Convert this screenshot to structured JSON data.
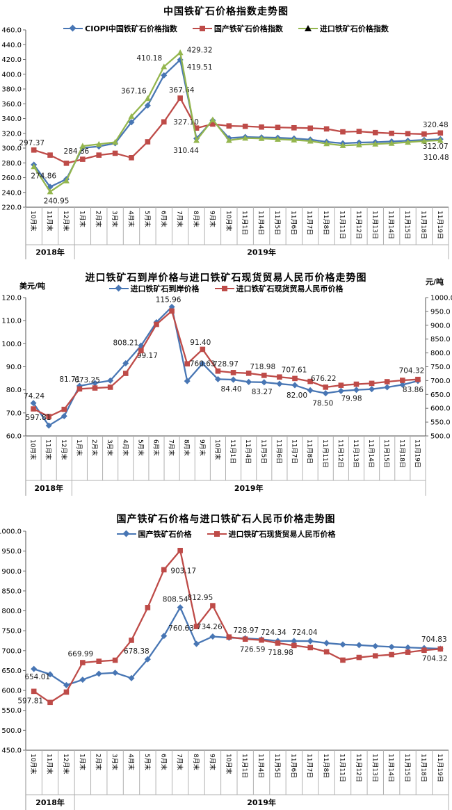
{
  "colors": {
    "blue": "#4876B4",
    "red": "#BE4B48",
    "green": "#94B64E",
    "axis_line": "#6e6e6e",
    "cell_border": "#b0b0b0",
    "data_label": "#1b1b1b"
  },
  "x_axis": {
    "categories": [
      "10月末",
      "11月末",
      "12月末",
      "1月末",
      "2月末",
      "3月末",
      "4月末",
      "5月末",
      "6月末",
      "7月末",
      "8月末",
      "9月末",
      "10月末",
      "11月1日",
      "11月4日",
      "11月5日",
      "11月6日",
      "11月7日",
      "11月8日",
      "11月11日",
      "11月12日",
      "11月13日",
      "11月14日",
      "11月15日",
      "11月18日",
      "11月19日"
    ],
    "year_groups": [
      {
        "label": "2018年",
        "span": 3
      },
      {
        "label": "2019年",
        "span": 23
      }
    ]
  },
  "chart_data": [
    {
      "id": "c1",
      "type": "line",
      "title": "中国铁矿石价格指数走势图",
      "y_axis": {
        "min": 220,
        "max": 460,
        "step": 20
      },
      "legend_position": "top",
      "grid": false,
      "series": [
        {
          "name": "CIOPI中国铁矿石价格指数",
          "color": "blue",
          "marker": "diamond",
          "axis": "y1",
          "values": [
            277.5,
            247.5,
            258.0,
            300.3,
            302.2,
            306.6,
            335.0,
            357.7,
            398.5,
            419.51,
            313.0,
            337.5,
            313.5,
            315.0,
            314.5,
            314.0,
            313.0,
            311.5,
            308.5,
            306.5,
            307.5,
            308.0,
            309.0,
            310.0,
            311.0,
            312.07
          ],
          "point_labels": [
            {
              "i": 9,
              "text": "419.51",
              "dx": 28,
              "dy": 14
            },
            {
              "i": 25,
              "text": "312.07",
              "dx": -7,
              "dy": 14
            }
          ]
        },
        {
          "name": "国产铁矿石价格指数",
          "color": "red",
          "marker": "square",
          "axis": "y1",
          "values": [
            297.37,
            290.5,
            279.5,
            284.86,
            290.5,
            293.0,
            287.0,
            308.5,
            335.5,
            367.64,
            327.1,
            332.5,
            330.0,
            329.5,
            328.5,
            328.0,
            327.5,
            327.0,
            326.0,
            322.0,
            322.5,
            321.0,
            320.0,
            319.5,
            319.0,
            320.48
          ],
          "point_labels": [
            {
              "i": 0,
              "text": "297.37",
              "dx": -3,
              "dy": -7
            },
            {
              "i": 3,
              "text": "284.86",
              "dx": -9,
              "dy": -8
            },
            {
              "i": 9,
              "text": "367.64",
              "dx": 2,
              "dy": -8
            },
            {
              "i": 10,
              "text": "327.10",
              "dx": -15,
              "dy": -5
            },
            {
              "i": 25,
              "text": "320.48",
              "dx": -7,
              "dy": -8
            }
          ]
        },
        {
          "name": "进口铁矿石价格指数",
          "color": "green",
          "marker": "triangle",
          "axis": "y1",
          "values": [
            274.86,
            240.95,
            255.8,
            302.8,
            305.3,
            308.0,
            343.0,
            367.16,
            410.18,
            429.32,
            310.44,
            338.5,
            310.5,
            313.5,
            313.0,
            312.0,
            311.0,
            309.5,
            306.0,
            303.5,
            304.5,
            305.5,
            306.5,
            308.0,
            309.5,
            310.48
          ],
          "point_labels": [
            {
              "i": 0,
              "text": "274.86",
              "dx": 14,
              "dy": 17
            },
            {
              "i": 1,
              "text": "240.95",
              "dx": 9,
              "dy": 17
            },
            {
              "i": 7,
              "text": "367.16",
              "dx": -20,
              "dy": -7
            },
            {
              "i": 8,
              "text": "410.18",
              "dx": -21,
              "dy": -9
            },
            {
              "i": 9,
              "text": "429.32",
              "dx": 28,
              "dy": 0
            },
            {
              "i": 10,
              "text": "310.44",
              "dx": -15,
              "dy": 18
            },
            {
              "i": 25,
              "text": "310.48",
              "dx": -6,
              "dy": 28
            }
          ]
        }
      ]
    },
    {
      "id": "c2",
      "type": "line",
      "title": "进口铁矿石到岸价格与进口铁矿石现货贸易人民币价格走势图",
      "left_axis_title": "美元/吨",
      "right_axis_title": "元/吨",
      "y_axis": {
        "min": 60,
        "max": 120,
        "step": 10
      },
      "y2_axis": {
        "min": 500,
        "max": 1000,
        "step": 50
      },
      "legend_position": "top",
      "grid": false,
      "series": [
        {
          "name": "进口铁矿石到岸价格",
          "color": "blue",
          "marker": "diamond",
          "axis": "y1",
          "values": [
            74.24,
            64.5,
            68.6,
            81.71,
            82.9,
            84.0,
            91.5,
            99.17,
            109.3,
            115.96,
            83.8,
            91.4,
            84.6,
            84.4,
            83.4,
            83.27,
            82.6,
            82.0,
            79.8,
            78.5,
            79.5,
            79.98,
            80.3,
            81.1,
            82.2,
            83.86
          ],
          "point_labels": [
            {
              "i": 0,
              "text": "74.24",
              "dx": 1,
              "dy": -7
            },
            {
              "i": 3,
              "text": "81.71",
              "dx": -14,
              "dy": -6
            },
            {
              "i": 7,
              "text": "99.17",
              "dx": 9,
              "dy": 18
            },
            {
              "i": 9,
              "text": "115.96",
              "dx": -5,
              "dy": -7
            },
            {
              "i": 11,
              "text": "91.40",
              "dx": -3,
              "dy": -27
            },
            {
              "i": 13,
              "text": "84.40",
              "dx": -3,
              "dy": 17
            },
            {
              "i": 15,
              "text": "83.27",
              "dx": -3,
              "dy": 17
            },
            {
              "i": 17,
              "text": "82.00",
              "dx": 3,
              "dy": 18
            },
            {
              "i": 19,
              "text": "78.50",
              "dx": -4,
              "dy": 18
            },
            {
              "i": 21,
              "text": "79.98",
              "dx": -7,
              "dy": 16
            },
            {
              "i": 25,
              "text": "83.86",
              "dx": -7,
              "dy": 16
            }
          ]
        },
        {
          "name": "进口铁矿石现货贸易人民币价格",
          "color": "red",
          "marker": "square",
          "axis": "y2",
          "values": [
            597.81,
            570.0,
            596.0,
            669.99,
            673.25,
            676.0,
            726.0,
            808.21,
            903.17,
            951.5,
            760.63,
            812.95,
            734.26,
            728.97,
            726.59,
            718.98,
            713.0,
            707.61,
            697.0,
            676.22,
            683.0,
            687.0,
            690.0,
            696.0,
            701.0,
            704.32
          ],
          "point_labels": [
            {
              "i": 0,
              "text": "597.81",
              "dx": 7,
              "dy": 16
            },
            {
              "i": 4,
              "text": "673.25",
              "dx": -11,
              "dy": -8
            },
            {
              "i": 7,
              "text": "808.21",
              "dx": -22,
              "dy": -8
            },
            {
              "i": 10,
              "text": "760.63",
              "dx": 22,
              "dy": 3
            },
            {
              "i": 13,
              "text": "728.97",
              "dx": -11,
              "dy": -9
            },
            {
              "i": 15,
              "text": "718.98",
              "dx": -2,
              "dy": -9
            },
            {
              "i": 17,
              "text": "707.61",
              "dx": -1,
              "dy": -9
            },
            {
              "i": 19,
              "text": "676.22",
              "dx": -3,
              "dy": -9
            },
            {
              "i": 25,
              "text": "704.32",
              "dx": -9,
              "dy": -9
            }
          ]
        }
      ]
    },
    {
      "id": "c3",
      "type": "line",
      "title": "国产铁矿石价格与进口铁矿石人民币价格走势图",
      "y_axis": {
        "min": 450,
        "max": 1000,
        "step": 50
      },
      "legend_position": "top",
      "grid": false,
      "series": [
        {
          "name": "国产铁矿石价格",
          "color": "blue",
          "marker": "diamond",
          "axis": "y1",
          "values": [
            654.01,
            640.5,
            613.5,
            627.0,
            642.0,
            644.5,
            631.0,
            678.38,
            737.0,
            808.54,
            717.0,
            735.5,
            732.5,
            731.0,
            728.5,
            724.34,
            724.2,
            724.04,
            719.0,
            715.5,
            714.0,
            711.5,
            709.5,
            708.0,
            706.5,
            704.83
          ],
          "point_labels": [
            {
              "i": 0,
              "text": "654.01",
              "dx": 5,
              "dy": 15
            },
            {
              "i": 7,
              "text": "678.38",
              "dx": -16,
              "dy": -8
            },
            {
              "i": 9,
              "text": "808.54",
              "dx": -7,
              "dy": -8
            },
            {
              "i": 15,
              "text": "724.34",
              "dx": -6,
              "dy": -9
            },
            {
              "i": 17,
              "text": "724.04",
              "dx": -8,
              "dy": -9
            },
            {
              "i": 25,
              "text": "704.83",
              "dx": -9,
              "dy": -10
            }
          ]
        },
        {
          "name": "进口铁矿石现货贸易人民币价格",
          "color": "red",
          "marker": "square",
          "axis": "y1",
          "values": [
            597.81,
            570.0,
            596.0,
            669.99,
            673.25,
            676.0,
            726.0,
            808.21,
            903.17,
            951.5,
            760.63,
            812.95,
            734.26,
            728.97,
            726.59,
            718.98,
            713.0,
            707.61,
            697.0,
            676.22,
            683.0,
            687.0,
            690.0,
            696.0,
            701.0,
            704.32
          ],
          "point_labels": [
            {
              "i": 0,
              "text": "597.81",
              "dx": -5,
              "dy": 17
            },
            {
              "i": 3,
              "text": "669.99",
              "dx": -3,
              "dy": -9
            },
            {
              "i": 8,
              "text": "903.17",
              "dx": 28,
              "dy": 5
            },
            {
              "i": 10,
              "text": "760.63",
              "dx": -22,
              "dy": 6
            },
            {
              "i": 11,
              "text": "812.95",
              "dx": -18,
              "dy": -8
            },
            {
              "i": 12,
              "text": "734.26",
              "dx": -28,
              "dy": -11
            },
            {
              "i": 13,
              "text": "728.97",
              "dx": 1,
              "dy": -9
            },
            {
              "i": 14,
              "text": "726.59",
              "dx": -13,
              "dy": 17
            },
            {
              "i": 15,
              "text": "718.98",
              "dx": 4,
              "dy": 17
            },
            {
              "i": 25,
              "text": "704.32",
              "dx": -8,
              "dy": 17
            }
          ]
        }
      ]
    }
  ]
}
